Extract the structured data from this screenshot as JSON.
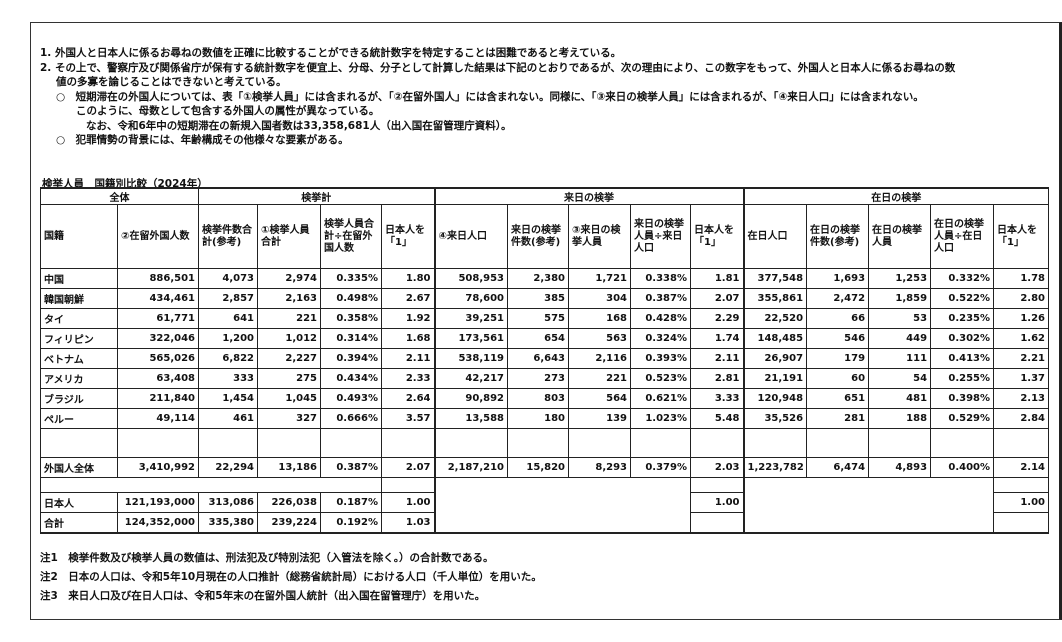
{
  "intro": [
    "1. 外国人と日本人に係るお尋ねの数値を正確に比較することができる統計数字を特定することは困難であると考えている。",
    "2. その上で、警察庁及び関係省庁が保有する統計数字を便宜上、分母、分子として計算した結果は下記のとおりであるが、次の理由により、この数字をもって、外国人と日本人に係るお尋ねの数",
    "値の多寡を論じることはできないと考えている。",
    "○　短期滞在の外国人については、表「①検挙人員」には含まれるが、「②在留外国人」には含まれない。同様に、「③来日の検挙人員」には含まれるが、「④来日人口」には含まれない。",
    "このように、母数として包含する外国人の属性が異なっている。",
    "なお、令和6年中の短期滞在の新規入国者数は33,358,681人（出入国在留管理庁資料）。",
    "○　犯罪情勢の背景には、年齢構成その他様々な要素がある。"
  ],
  "table": {
    "title": "検挙人員　国籍別比較（2024年）",
    "groups": [
      "全体",
      "検挙計",
      "来日の検挙",
      "在日の検挙"
    ],
    "headers": [
      "国籍",
      "②在留外国人数",
      "検挙件数合計(参考)",
      "①検挙人員合計",
      "検挙人員合計÷在留外国人数",
      "日本人を「1」",
      "④来日人口",
      "来日の検挙件数(参考)",
      "③来日の検挙人員",
      "来日の検挙人員÷来日人口",
      "日本人を「1」",
      "在日人口",
      "在日の検挙件数(参考)",
      "在日の検挙人員",
      "在日の検挙人員÷在日人口",
      "日本人を「1」"
    ],
    "rows": [
      {
        "name": "中国",
        "values": [
          "886,501",
          "4,073",
          "2,974",
          "0.335%",
          "1.80",
          "508,953",
          "2,380",
          "1,721",
          "0.338%",
          "1.81",
          "377,548",
          "1,693",
          "1,253",
          "0.332%",
          "1.78"
        ]
      },
      {
        "name": "韓国朝鮮",
        "values": [
          "434,461",
          "2,857",
          "2,163",
          "0.498%",
          "2.67",
          "78,600",
          "385",
          "304",
          "0.387%",
          "2.07",
          "355,861",
          "2,472",
          "1,859",
          "0.522%",
          "2.80"
        ]
      },
      {
        "name": "タイ",
        "values": [
          "61,771",
          "641",
          "221",
          "0.358%",
          "1.92",
          "39,251",
          "575",
          "168",
          "0.428%",
          "2.29",
          "22,520",
          "66",
          "53",
          "0.235%",
          "1.26"
        ]
      },
      {
        "name": "フィリピン",
        "values": [
          "322,046",
          "1,200",
          "1,012",
          "0.314%",
          "1.68",
          "173,561",
          "654",
          "563",
          "0.324%",
          "1.74",
          "148,485",
          "546",
          "449",
          "0.302%",
          "1.62"
        ]
      },
      {
        "name": "ベトナム",
        "values": [
          "565,026",
          "6,822",
          "2,227",
          "0.394%",
          "2.11",
          "538,119",
          "6,643",
          "2,116",
          "0.393%",
          "2.11",
          "26,907",
          "179",
          "111",
          "0.413%",
          "2.21"
        ]
      },
      {
        "name": "アメリカ",
        "values": [
          "63,408",
          "333",
          "275",
          "0.434%",
          "2.33",
          "42,217",
          "273",
          "221",
          "0.523%",
          "2.81",
          "21,191",
          "60",
          "54",
          "0.255%",
          "1.37"
        ]
      },
      {
        "name": "ブラジル",
        "values": [
          "211,840",
          "1,454",
          "1,045",
          "0.493%",
          "2.64",
          "90,892",
          "803",
          "564",
          "0.621%",
          "3.33",
          "120,948",
          "651",
          "481",
          "0.398%",
          "2.13"
        ]
      },
      {
        "name": "ペルー",
        "values": [
          "49,114",
          "461",
          "327",
          "0.666%",
          "3.57",
          "13,588",
          "180",
          "139",
          "1.023%",
          "5.48",
          "35,526",
          "281",
          "188",
          "0.529%",
          "2.84"
        ]
      }
    ],
    "foreign_total": {
      "name": "外国人全体",
      "values": [
        "3,410,992",
        "22,294",
        "13,186",
        "0.387%",
        "2.07",
        "2,187,210",
        "15,820",
        "8,293",
        "0.379%",
        "2.03",
        "1,223,782",
        "6,474",
        "4,893",
        "0.400%",
        "2.14"
      ]
    },
    "japanese": {
      "name": "日本人",
      "values": [
        "121,193,000",
        "313,086",
        "226,038",
        "0.187%",
        "1.00"
      ],
      "rainichi_ratio": "1.00",
      "zainichi_ratio": "1.00"
    },
    "total": {
      "name": "合計",
      "values": [
        "124,352,000",
        "335,380",
        "239,224",
        "0.192%",
        "1.03"
      ]
    }
  },
  "notes": [
    "注1　検挙件数及び検挙人員の数値は、刑法犯及び特別法犯（入管法を除く。）の合計数である。",
    "注2　日本の人口は、令和5年10月現在の人口推計（総務省統計局）における人口（千人単位）を用いた。",
    "注3　来日人口及び在日人口は、令和5年末の在留外国人統計（出入国在留管理庁）を用いた。"
  ]
}
